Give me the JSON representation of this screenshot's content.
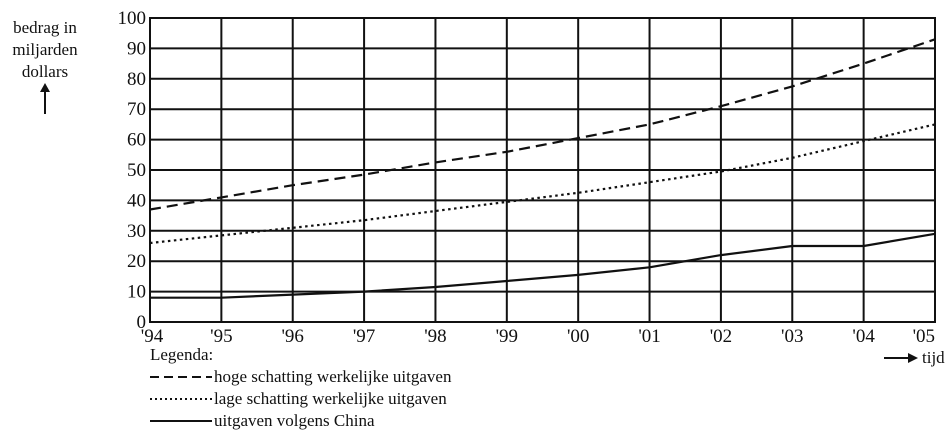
{
  "chart_data": {
    "type": "line",
    "title": "",
    "ylabel_lines": [
      "bedrag in",
      "miljarden",
      "dollars"
    ],
    "xlabel": "tijd",
    "categories": [
      "'94",
      "'95",
      "'96",
      "'97",
      "'98",
      "'99",
      "'00",
      "'01",
      "'02",
      "'03",
      "'04",
      "'05"
    ],
    "yticks": [
      "0",
      "10",
      "20",
      "30",
      "40",
      "50",
      "60",
      "70",
      "80",
      "90",
      "100"
    ],
    "ylim": [
      0,
      100
    ],
    "grid": true,
    "legend_title": "Legenda:",
    "series": [
      {
        "name": "hoge schatting werkelijke uitgaven",
        "style": "dashed",
        "values": [
          37,
          41,
          45,
          48.5,
          52.5,
          56,
          60.5,
          65,
          71,
          77.5,
          85,
          93
        ]
      },
      {
        "name": "lage schatting werkelijke uitgaven",
        "style": "dotted",
        "values": [
          26,
          28.5,
          31,
          33.5,
          36.5,
          39.5,
          42.5,
          46,
          49.5,
          54,
          59.5,
          65
        ]
      },
      {
        "name": "uitgaven volgens China",
        "style": "solid",
        "values": [
          8,
          8,
          9,
          10,
          11.5,
          13.5,
          15.5,
          18,
          22,
          25,
          25,
          29
        ]
      }
    ]
  }
}
